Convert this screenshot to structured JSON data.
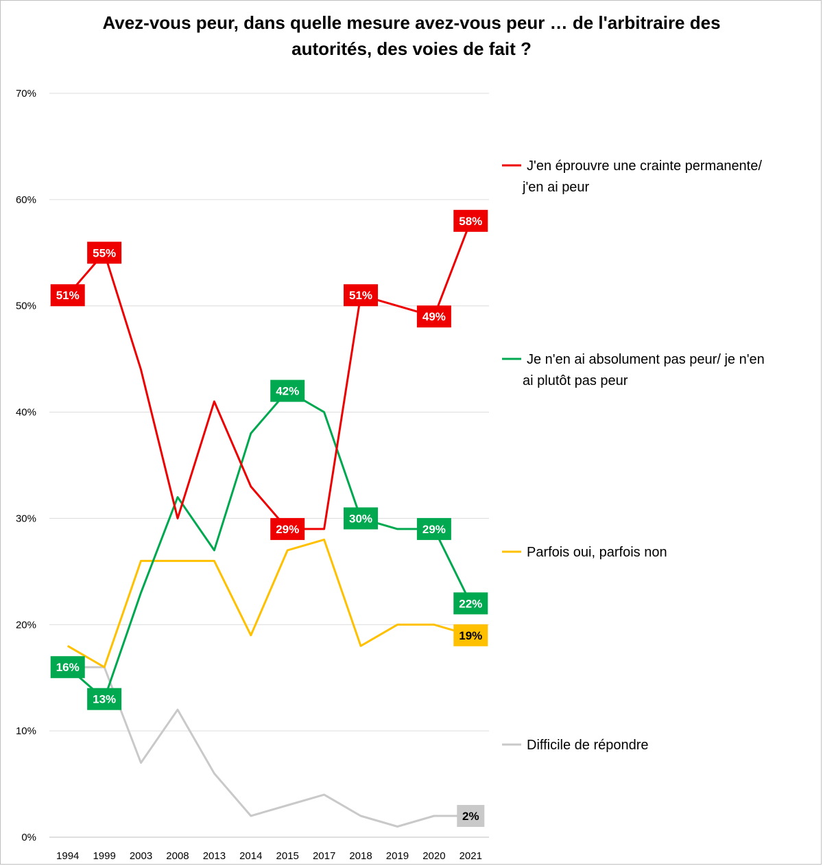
{
  "chart_data": {
    "type": "line",
    "title_lines": [
      "Avez-vous peur, dans quelle mesure avez-vous peur … de l'arbitraire des",
      "autorités, des voies de fait ?"
    ],
    "categories": [
      "1994",
      "1999",
      "2003",
      "2008",
      "2013",
      "2014",
      "2015",
      "2017",
      "2018",
      "2019",
      "2020",
      "2021"
    ],
    "y_ticks": [
      "0%",
      "10%",
      "20%",
      "30%",
      "40%",
      "50%",
      "60%",
      "70%"
    ],
    "ylim": [
      0,
      70
    ],
    "xlabel": "",
    "ylabel": "",
    "grid": true,
    "legend_position": "right",
    "series": [
      {
        "key": "red",
        "name_lines": [
          "J'en éprouvre une crainte permanente/",
          "j'en ai peur"
        ],
        "color": "#ee0000",
        "values": [
          51,
          55,
          44,
          30,
          41,
          33,
          29,
          29,
          51,
          50,
          49,
          58
        ],
        "labels": [
          {
            "i": 0,
            "text": "51%"
          },
          {
            "i": 1,
            "text": "55%"
          },
          {
            "i": 6,
            "text": "29%"
          },
          {
            "i": 8,
            "text": "51%"
          },
          {
            "i": 10,
            "text": "49%"
          },
          {
            "i": 11,
            "text": "58%"
          }
        ]
      },
      {
        "key": "green",
        "name_lines": [
          "Je n'en ai absolument pas peur/ je n'en",
          "ai plutôt pas peur"
        ],
        "color": "#00a84f",
        "values": [
          16,
          13,
          23,
          32,
          27,
          38,
          42,
          40,
          30,
          29,
          29,
          22
        ],
        "labels": [
          {
            "i": 0,
            "text": "16%"
          },
          {
            "i": 1,
            "text": "13%"
          },
          {
            "i": 6,
            "text": "42%"
          },
          {
            "i": 8,
            "text": "30%"
          },
          {
            "i": 10,
            "text": "29%"
          },
          {
            "i": 11,
            "text": "22%"
          }
        ]
      },
      {
        "key": "yellow",
        "name_lines": [
          "Parfois oui, parfois non"
        ],
        "color": "#ffc000",
        "values": [
          18,
          16,
          26,
          26,
          26,
          19,
          27,
          28,
          18,
          20,
          20,
          19
        ],
        "labels": [
          {
            "i": 11,
            "text": "19%"
          }
        ]
      },
      {
        "key": "gray",
        "name_lines": [
          "Difficile de répondre"
        ],
        "color": "#c9c9c9",
        "values": [
          16,
          16,
          7,
          12,
          6,
          2,
          3,
          4,
          2,
          1,
          2,
          2
        ],
        "labels": [
          {
            "i": 11,
            "text": "2%"
          }
        ]
      }
    ]
  }
}
